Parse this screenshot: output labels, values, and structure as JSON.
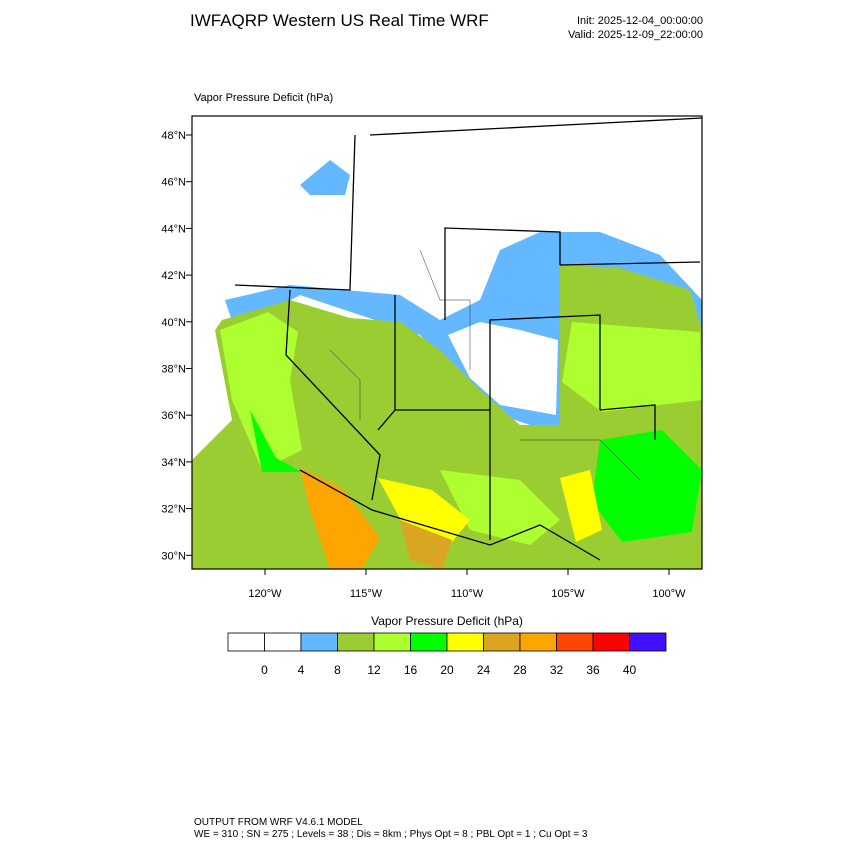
{
  "header": {
    "title": "IWFAQRP Western US Real Time WRF",
    "init": "Init: 2025-12-04_00:00:00",
    "valid": "Valid: 2025-12-09_22:00:00"
  },
  "map": {
    "subtitle": "Vapor Pressure Deficit   (hPa)",
    "lat_labels": [
      "48°N",
      "46°N",
      "44°N",
      "42°N",
      "40°N",
      "38°N",
      "36°N",
      "34°N",
      "32°N",
      "30°N"
    ],
    "lon_labels": [
      "120°W",
      "115°W",
      "110°W",
      "105°W",
      "100°W"
    ]
  },
  "colorbar": {
    "title": "Vapor Pressure Deficit  (hPa)",
    "colors": [
      "#ffffff",
      "#ffffff",
      "#63b8ff",
      "#9acd32",
      "#adff2f",
      "#00ff00",
      "#ffff00",
      "#daa520",
      "#ffa500",
      "#ff4500",
      "#ff0000",
      "#4010ff"
    ],
    "ticks": [
      0,
      4,
      8,
      12,
      16,
      20,
      24,
      28,
      32,
      36,
      40
    ]
  },
  "footer": {
    "line1": "OUTPUT FROM WRF V4.6.1 MODEL",
    "line2": "WE = 310 ; SN = 275 ; Levels = 38 ; Dis = 8km ; Phys Opt = 8 ; PBL Opt = 1 ; Cu Opt = 3"
  }
}
